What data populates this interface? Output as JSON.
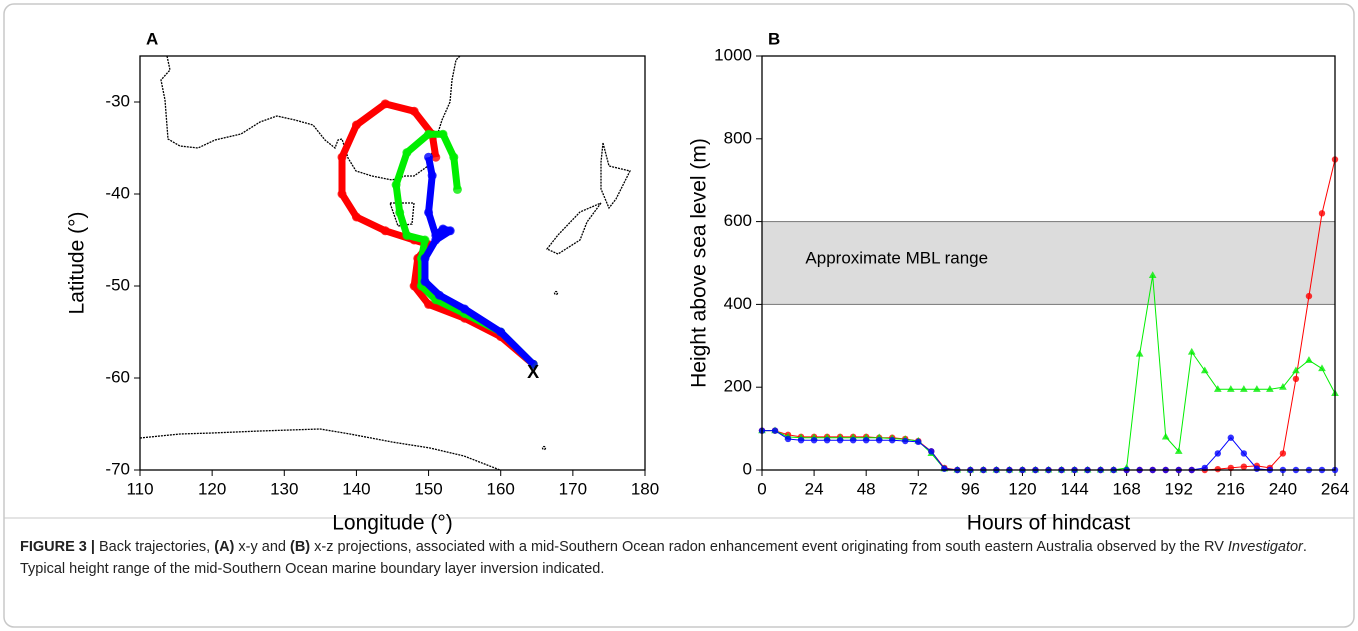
{
  "chart_data": [
    {
      "type": "line",
      "panel_label": "A",
      "xlabel": "Longitude (°)",
      "ylabel": "Latitude (°)",
      "xlim": [
        110,
        180
      ],
      "ylim": [
        -70,
        -25
      ],
      "xticks": [
        110,
        120,
        130,
        140,
        150,
        160,
        170,
        180
      ],
      "yticks": [
        -70,
        -60,
        -50,
        -40,
        -30
      ],
      "annotations": [
        {
          "text": "X",
          "x": 164.5,
          "y": -59.5
        }
      ],
      "series": [
        {
          "color": "#ff0000",
          "marker": "circle",
          "x": [
            164.5,
            160,
            155,
            150,
            148,
            148.5,
            150,
            148,
            144,
            140,
            138,
            138,
            140,
            144,
            148,
            150.5,
            151
          ],
          "values": [
            -58.5,
            -55.5,
            -53.5,
            -52,
            -50,
            -47,
            -45.5,
            -45,
            -44,
            -42.5,
            -40,
            -36,
            -32.5,
            -30.2,
            -31,
            -33.5,
            -36
          ]
        },
        {
          "color": "#00ee00",
          "marker": "circle",
          "x": [
            164.5,
            160,
            155,
            151,
            149,
            149,
            149.5,
            147,
            146,
            145.5,
            147,
            150,
            152,
            153.5,
            154
          ],
          "values": [
            -58.5,
            -55,
            -53,
            -51.5,
            -50,
            -47,
            -45,
            -44.5,
            -42,
            -39,
            -35.5,
            -33.5,
            -33.5,
            -36,
            -39.5
          ]
        },
        {
          "color": "#0000ff",
          "marker": "circle",
          "x": [
            164.5,
            160,
            155,
            151.5,
            149.5,
            149.5,
            151,
            153,
            152,
            151,
            150,
            150.5,
            150
          ],
          "values": [
            -58.5,
            -55,
            -52.5,
            -51,
            -49.5,
            -47,
            -45,
            -44,
            -43.8,
            -44.5,
            -42,
            -38,
            -36
          ]
        }
      ]
    },
    {
      "type": "line",
      "panel_label": "B",
      "xlabel": "Hours of hindcast",
      "ylabel": "Height above sea level (m)",
      "xlim": [
        0,
        264
      ],
      "ylim": [
        0,
        1000
      ],
      "xticks": [
        0,
        24,
        48,
        72,
        96,
        120,
        144,
        168,
        192,
        216,
        240,
        264
      ],
      "yticks": [
        0,
        200,
        400,
        600,
        800,
        1000
      ],
      "shaded_range": [
        400,
        600
      ],
      "annotations": [
        {
          "text": "Approximate MBL range",
          "x": 20,
          "y": 510
        }
      ],
      "x": [
        0,
        6,
        12,
        18,
        24,
        30,
        36,
        42,
        48,
        54,
        60,
        66,
        72,
        78,
        84,
        90,
        96,
        102,
        108,
        114,
        120,
        126,
        132,
        138,
        144,
        150,
        156,
        162,
        168,
        174,
        180,
        186,
        192,
        198,
        204,
        210,
        216,
        222,
        228,
        234,
        240,
        246,
        252,
        258,
        264
      ],
      "series": [
        {
          "color": "#ff0000",
          "marker": "circle",
          "values": [
            95,
            95,
            85,
            80,
            80,
            80,
            80,
            80,
            80,
            78,
            78,
            75,
            70,
            45,
            5,
            0,
            0,
            0,
            0,
            0,
            0,
            0,
            0,
            0,
            0,
            0,
            0,
            0,
            0,
            0,
            0,
            0,
            0,
            0,
            0,
            2,
            5,
            8,
            10,
            5,
            40,
            220,
            420,
            620,
            750
          ]
        },
        {
          "color": "#00ee00",
          "marker": "triangle",
          "values": [
            95,
            95,
            80,
            78,
            78,
            78,
            78,
            78,
            78,
            78,
            76,
            74,
            70,
            40,
            3,
            0,
            0,
            0,
            0,
            0,
            0,
            0,
            0,
            0,
            0,
            0,
            0,
            0,
            5,
            280,
            470,
            80,
            45,
            285,
            240,
            195,
            195,
            195,
            195,
            195,
            200,
            240,
            265,
            245,
            185
          ]
        },
        {
          "color": "#0000ff",
          "marker": "circle",
          "values": [
            95,
            95,
            75,
            72,
            72,
            72,
            72,
            72,
            72,
            72,
            72,
            70,
            68,
            45,
            3,
            0,
            0,
            0,
            0,
            0,
            0,
            0,
            0,
            0,
            0,
            0,
            0,
            0,
            0,
            0,
            0,
            0,
            0,
            0,
            5,
            40,
            78,
            40,
            3,
            0,
            0,
            0,
            0,
            0,
            0
          ]
        }
      ]
    }
  ],
  "caption": [
    "FIGURE 3 |",
    " Back trajectories, ",
    "(A)",
    " x-y and ",
    "(B)",
    " x-z projections, associated with a mid-Southern Ocean radon enhancement event originating from south eastern Australia observed by the RV ",
    "Investigator",
    ". Typical height range of the mid-Southern Ocean marine boundary layer inversion indicated."
  ]
}
